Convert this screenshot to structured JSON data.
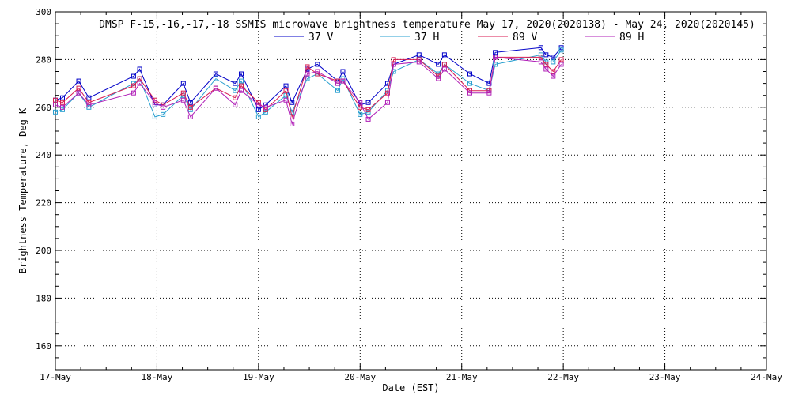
{
  "chart_data": {
    "type": "line",
    "title": "DMSP F-15,-16,-17,-18 SSMIS microwave brightness temperature May 17, 2020(2020138) - May 24, 2020(2020145)",
    "xlabel": "Date (EST)",
    "ylabel": "Brightness Temperature, Deg K",
    "xlim": [
      0,
      7
    ],
    "ylim": [
      150,
      300
    ],
    "yticks": [
      160,
      180,
      200,
      220,
      240,
      260,
      280,
      300
    ],
    "xticks": [
      0,
      1,
      2,
      3,
      4,
      5,
      6,
      7
    ],
    "xtick_labels": [
      "17-May",
      "18-May",
      "19-May",
      "20-May",
      "21-May",
      "22-May",
      "23-May",
      "24-May"
    ],
    "grid": true,
    "legend_position": "top-center",
    "x": [
      0.0,
      0.07,
      0.23,
      0.33,
      0.77,
      0.83,
      0.98,
      1.06,
      1.26,
      1.33,
      1.58,
      1.77,
      1.83,
      2.0,
      2.07,
      2.27,
      2.33,
      2.48,
      2.58,
      2.78,
      2.83,
      3.0,
      3.08,
      3.27,
      3.33,
      3.58,
      3.77,
      3.83,
      4.08,
      4.27,
      4.33,
      4.78,
      4.83,
      4.9,
      4.98
    ],
    "series": [
      {
        "name": "37 V",
        "color": "#0000c8",
        "values": [
          263,
          264,
          271,
          264,
          273,
          276,
          261,
          261,
          270,
          262,
          274,
          270,
          274,
          259,
          261,
          269,
          262,
          276,
          278,
          271,
          275,
          261,
          262,
          270,
          278,
          282,
          278,
          282,
          274,
          270,
          283,
          285,
          282,
          281,
          285
        ]
      },
      {
        "name": "37 H",
        "color": "#2aa0d0",
        "values": [
          258,
          259,
          266,
          260,
          270,
          272,
          256,
          257,
          265,
          259,
          272,
          267,
          271,
          256,
          258,
          265,
          258,
          272,
          274,
          267,
          272,
          257,
          258,
          267,
          275,
          280,
          274,
          278,
          270,
          267,
          278,
          282,
          279,
          279,
          284
        ]
      },
      {
        "name": "89 V",
        "color": "#d81a50",
        "values": [
          263,
          262,
          268,
          262,
          269,
          272,
          263,
          261,
          266,
          260,
          268,
          264,
          269,
          262,
          259,
          267,
          256,
          277,
          274,
          271,
          271,
          260,
          259,
          266,
          280,
          280,
          273,
          278,
          267,
          267,
          281,
          281,
          278,
          275,
          280
        ]
      },
      {
        "name": "89 H",
        "color": "#b020b8",
        "values": [
          261,
          260,
          266,
          261,
          266,
          270,
          262,
          260,
          263,
          256,
          268,
          261,
          267,
          261,
          260,
          263,
          253,
          274,
          275,
          270,
          271,
          262,
          255,
          262,
          278,
          279,
          272,
          276,
          266,
          266,
          281,
          279,
          276,
          273,
          278
        ]
      }
    ]
  }
}
